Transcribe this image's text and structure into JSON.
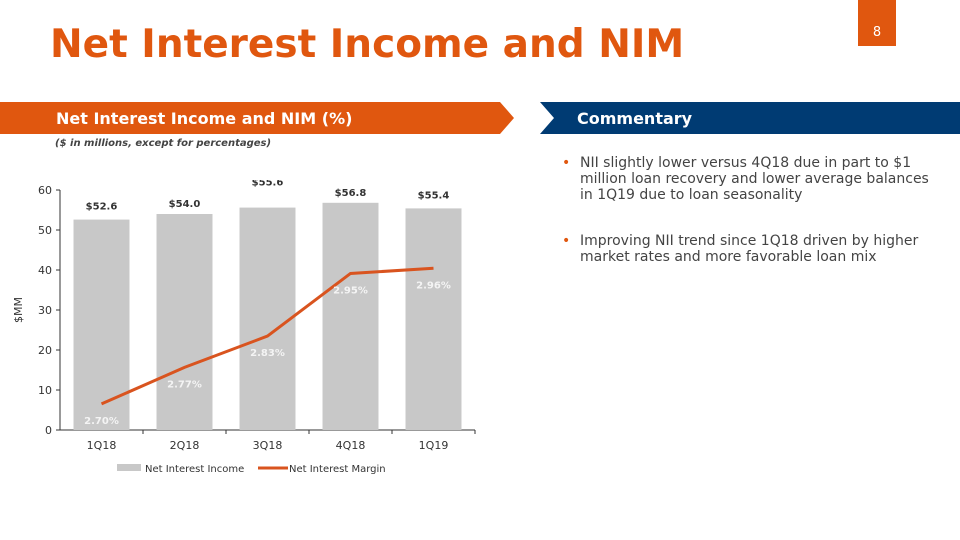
{
  "page_number": "8",
  "title": "Net Interest Income and NIM",
  "commentary": {
    "header": "Commentary",
    "bullets": [
      "NII slightly lower versus 4Q18 due in part to $1 million loan recovery and lower average balances in 1Q19 due to loan seasonality",
      "Improving NII trend since 1Q18 driven by higher market rates and more favorable loan mix"
    ]
  },
  "chart_data": {
    "type": "combo",
    "title": "Net Interest Income and NIM (%)",
    "subtitle": "($ in millions, except for percentages)",
    "ylabel": "$MM",
    "categories": [
      "1Q18",
      "2Q18",
      "3Q18",
      "4Q18",
      "1Q19"
    ],
    "series": [
      {
        "name": "Net Interest Income",
        "type": "bar",
        "color": "#c8c8c8",
        "values": [
          52.6,
          54.0,
          55.6,
          56.8,
          55.4
        ],
        "value_labels": [
          "$52.6",
          "$54.0",
          "$55.6",
          "$56.8",
          "$55.4"
        ]
      },
      {
        "name": "Net Interest Margin",
        "type": "line",
        "axis": "y2",
        "color": "#d9541f",
        "values": [
          2.7,
          2.77,
          2.83,
          2.95,
          2.96
        ],
        "value_labels": [
          "2.70%",
          "2.77%",
          "2.83%",
          "2.95%",
          "2.96%"
        ]
      }
    ],
    "ylim": [
      0,
      60
    ],
    "yticks": [
      0,
      10,
      20,
      30,
      40,
      50,
      60
    ],
    "y2lim": [
      2.65,
      3.11
    ],
    "legend": "bottom"
  }
}
